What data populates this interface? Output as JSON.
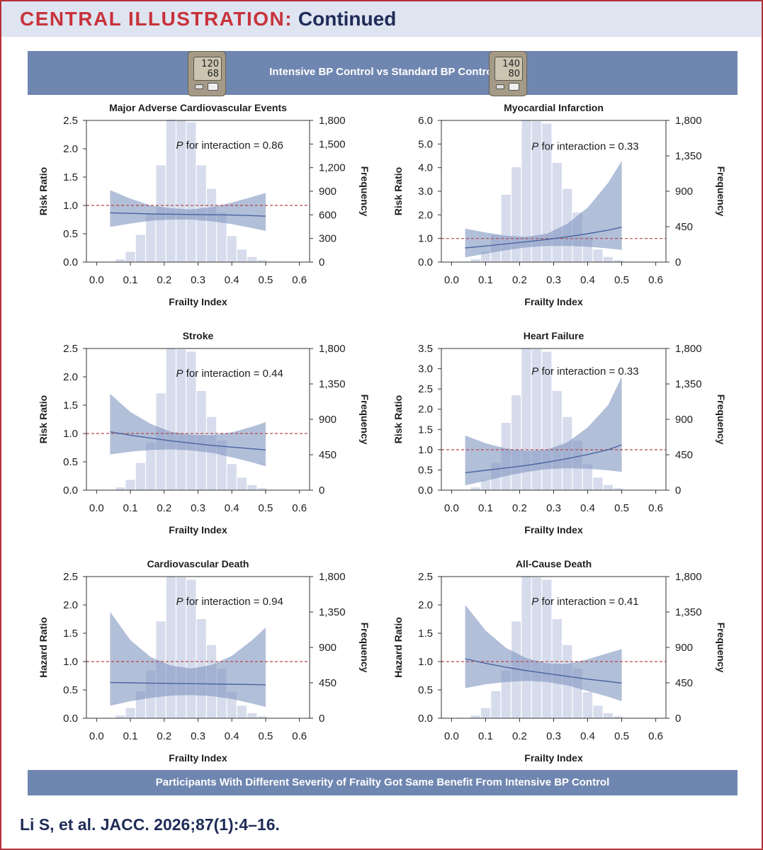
{
  "header": {
    "title_part1": "CENTRAL ILLUSTRATION:",
    "title_part2": "Continued"
  },
  "top_banner": {
    "label": "Intensive BP Control vs Standard BP Control",
    "monitor_left": {
      "systolic": "120",
      "diastolic": "68"
    },
    "monitor_right": {
      "systolic": "140",
      "diastolic": "80"
    }
  },
  "bottom_banner": "Participants With Different Severity of Frailty Got Same Benefit From Intensive BP Control",
  "citation": "Li S, et al. JACC. 2026;87(1):4–16.",
  "colors": {
    "accent": "#c8323a",
    "banner": "#6f86b0",
    "band": "#7f95c0",
    "line": "#4a64a0",
    "histogram": "#d6dcec",
    "reference": "#b5464a"
  },
  "chart_data": [
    {
      "type": "line",
      "title": "Major Adverse Cardiovascular Events",
      "xlabel": "Frailty Index",
      "ylabel": "Risk Ratio",
      "y2label": "Frequency",
      "xlim": [
        -0.03,
        0.63
      ],
      "ylim": [
        0,
        2.5
      ],
      "y2lim": [
        0,
        1800
      ],
      "xticks": [
        "0.0",
        "0.1",
        "0.2",
        "0.3",
        "0.4",
        "0.5",
        "0.6"
      ],
      "xtick_values": [
        0,
        0.1,
        0.2,
        0.3,
        0.4,
        0.5,
        0.6
      ],
      "yticks": [
        "0.0",
        "0.5",
        "1.0",
        "1.5",
        "2.0",
        "2.5"
      ],
      "ytick_values": [
        0,
        0.5,
        1,
        1.5,
        2,
        2.5
      ],
      "y2ticks": [
        "0",
        "300",
        "600",
        "900",
        "1,200",
        "1,500",
        "1,800"
      ],
      "y2tick_values": [
        0,
        300,
        600,
        900,
        1200,
        1500,
        1800
      ],
      "annotation_prefix": "P",
      "annotation": " for interaction = 0.86",
      "annotation_pos": [
        0.235,
        2.0
      ],
      "reference_line": 1.0,
      "histogram": {
        "bins": [
          0.025,
          0.055,
          0.085,
          0.115,
          0.145,
          0.175,
          0.205,
          0.235,
          0.265,
          0.295,
          0.325,
          0.355,
          0.385,
          0.415,
          0.445,
          0.475,
          0.505
        ],
        "counts": [
          5,
          35,
          130,
          345,
          605,
          1230,
          1810,
          1805,
          1775,
          1230,
          930,
          630,
          330,
          160,
          65,
          25
        ]
      },
      "fit": {
        "x": [
          0.04,
          0.1,
          0.16,
          0.22,
          0.28,
          0.34,
          0.4,
          0.46,
          0.5
        ],
        "y": [
          0.87,
          0.86,
          0.85,
          0.845,
          0.84,
          0.835,
          0.83,
          0.82,
          0.81
        ],
        "lower": [
          0.62,
          0.68,
          0.73,
          0.75,
          0.75,
          0.72,
          0.67,
          0.6,
          0.55
        ],
        "upper": [
          1.27,
          1.12,
          1.0,
          0.95,
          0.93,
          0.97,
          1.05,
          1.15,
          1.22
        ]
      }
    },
    {
      "type": "line",
      "title": "Myocardial Infarction",
      "xlabel": "Frailty Index",
      "ylabel": "Risk Ratio",
      "y2label": "Frequency",
      "xlim": [
        -0.03,
        0.63
      ],
      "ylim": [
        0,
        6.0
      ],
      "y2lim": [
        0,
        1800
      ],
      "xticks": [
        "0.0",
        "0.1",
        "0.2",
        "0.3",
        "0.4",
        "0.5",
        "0.6"
      ],
      "xtick_values": [
        0,
        0.1,
        0.2,
        0.3,
        0.4,
        0.5,
        0.6
      ],
      "yticks": [
        "0.0",
        "1.0",
        "2.0",
        "3.0",
        "4.0",
        "5.0",
        "6.0"
      ],
      "ytick_values": [
        0,
        1,
        2,
        3,
        4,
        5,
        6
      ],
      "y2ticks": [
        "0",
        "450",
        "900",
        "1,350",
        "1,800"
      ],
      "y2tick_values": [
        0,
        450,
        900,
        1350,
        1800
      ],
      "annotation_prefix": "P",
      "annotation": " for interaction = 0.33",
      "annotation_pos": [
        0.235,
        4.75
      ],
      "reference_line": 1.0,
      "histogram": {
        "bins": [
          0.025,
          0.055,
          0.085,
          0.115,
          0.145,
          0.175,
          0.205,
          0.235,
          0.265,
          0.295,
          0.325,
          0.355,
          0.385,
          0.415,
          0.445,
          0.475,
          0.505
        ],
        "counts": [
          5,
          35,
          130,
          345,
          855,
          1205,
          1800,
          1790,
          1760,
          1260,
          930,
          630,
          330,
          160,
          65,
          25
        ]
      },
      "fit": {
        "x": [
          0.04,
          0.1,
          0.16,
          0.22,
          0.28,
          0.34,
          0.4,
          0.46,
          0.5
        ],
        "y": [
          0.6,
          0.68,
          0.77,
          0.86,
          0.96,
          1.07,
          1.2,
          1.35,
          1.48
        ],
        "lower": [
          0.2,
          0.35,
          0.5,
          0.62,
          0.68,
          0.68,
          0.65,
          0.58,
          0.52
        ],
        "upper": [
          1.42,
          1.25,
          1.12,
          1.07,
          1.2,
          1.62,
          2.3,
          3.35,
          4.28
        ]
      }
    },
    {
      "type": "line",
      "title": "Stroke",
      "xlabel": "Frailty Index",
      "ylabel": "Risk Ratio",
      "y2label": "Frequency",
      "xlim": [
        -0.03,
        0.63
      ],
      "ylim": [
        0,
        2.5
      ],
      "y2lim": [
        0,
        1800
      ],
      "xticks": [
        "0.0",
        "0.1",
        "0.2",
        "0.3",
        "0.4",
        "0.5",
        "0.6"
      ],
      "xtick_values": [
        0,
        0.1,
        0.2,
        0.3,
        0.4,
        0.5,
        0.6
      ],
      "yticks": [
        "0.0",
        "0.5",
        "1.0",
        "1.5",
        "2.0",
        "2.5"
      ],
      "ytick_values": [
        0,
        0.5,
        1,
        1.5,
        2,
        2.5
      ],
      "y2ticks": [
        "0",
        "450",
        "900",
        "1,350",
        "1,800"
      ],
      "y2tick_values": [
        0,
        450,
        900,
        1350,
        1800
      ],
      "annotation_prefix": "P",
      "annotation": " for interaction = 0.44",
      "annotation_pos": [
        0.235,
        2.0
      ],
      "reference_line": 1.0,
      "histogram": {
        "bins": [
          0.025,
          0.055,
          0.085,
          0.115,
          0.145,
          0.175,
          0.205,
          0.235,
          0.265,
          0.295,
          0.325,
          0.355,
          0.385,
          0.415,
          0.445,
          0.475,
          0.505
        ],
        "counts": [
          5,
          35,
          130,
          345,
          605,
          1230,
          1800,
          1790,
          1760,
          1260,
          930,
          630,
          330,
          160,
          65,
          25
        ]
      },
      "fit": {
        "x": [
          0.04,
          0.1,
          0.16,
          0.22,
          0.28,
          0.34,
          0.4,
          0.46,
          0.5
        ],
        "y": [
          1.03,
          0.97,
          0.92,
          0.87,
          0.83,
          0.79,
          0.76,
          0.73,
          0.71
        ],
        "lower": [
          0.63,
          0.68,
          0.71,
          0.72,
          0.7,
          0.66,
          0.58,
          0.49,
          0.42
        ],
        "upper": [
          1.7,
          1.38,
          1.17,
          1.03,
          0.98,
          0.97,
          1.02,
          1.12,
          1.2
        ]
      }
    },
    {
      "type": "line",
      "title": "Heart Failure",
      "xlabel": "Frailty Index",
      "ylabel": "Risk Ratio",
      "y2label": "Frequency",
      "xlim": [
        -0.03,
        0.63
      ],
      "ylim": [
        0,
        3.5
      ],
      "y2lim": [
        0,
        1800
      ],
      "xticks": [
        "0.0",
        "0.1",
        "0.2",
        "0.3",
        "0.4",
        "0.5",
        "0.6"
      ],
      "xtick_values": [
        0,
        0.1,
        0.2,
        0.3,
        0.4,
        0.5,
        0.6
      ],
      "yticks": [
        "0.0",
        "0.5",
        "1.0",
        "1.5",
        "2.0",
        "2.5",
        "3.0",
        "3.5"
      ],
      "ytick_values": [
        0,
        0.5,
        1,
        1.5,
        2,
        2.5,
        3,
        3.5
      ],
      "y2ticks": [
        "0",
        "450",
        "900",
        "1,350",
        "1,800"
      ],
      "y2tick_values": [
        0,
        450,
        900,
        1350,
        1800
      ],
      "annotation_prefix": "P",
      "annotation": " for interaction = 0.33",
      "annotation_pos": [
        0.235,
        2.85
      ],
      "reference_line": 1.0,
      "histogram": {
        "bins": [
          0.025,
          0.055,
          0.085,
          0.115,
          0.145,
          0.175,
          0.205,
          0.235,
          0.265,
          0.295,
          0.325,
          0.355,
          0.385,
          0.415,
          0.445,
          0.475,
          0.505
        ],
        "counts": [
          5,
          35,
          130,
          345,
          855,
          1205,
          1800,
          1790,
          1760,
          1260,
          930,
          630,
          330,
          160,
          65,
          25
        ]
      },
      "fit": {
        "x": [
          0.04,
          0.1,
          0.16,
          0.22,
          0.28,
          0.34,
          0.4,
          0.46,
          0.5
        ],
        "y": [
          0.43,
          0.49,
          0.55,
          0.61,
          0.69,
          0.78,
          0.88,
          1.0,
          1.12
        ],
        "lower": [
          0.12,
          0.23,
          0.35,
          0.45,
          0.52,
          0.54,
          0.53,
          0.49,
          0.45
        ],
        "upper": [
          1.35,
          1.16,
          1.03,
          0.97,
          1.0,
          1.18,
          1.55,
          2.1,
          2.8
        ]
      }
    },
    {
      "type": "line",
      "title": "Cardiovascular Death",
      "xlabel": "Frailty Index",
      "ylabel": "Hazard Ratio",
      "y2label": "Frequency",
      "xlim": [
        -0.03,
        0.63
      ],
      "ylim": [
        0,
        2.5
      ],
      "y2lim": [
        0,
        1800
      ],
      "xticks": [
        "0.0",
        "0.1",
        "0.2",
        "0.3",
        "0.4",
        "0.5",
        "0.6"
      ],
      "xtick_values": [
        0,
        0.1,
        0.2,
        0.3,
        0.4,
        0.5,
        0.6
      ],
      "yticks": [
        "0.0",
        "0.5",
        "1.0",
        "1.5",
        "2.0",
        "2.5"
      ],
      "ytick_values": [
        0,
        0.5,
        1,
        1.5,
        2,
        2.5
      ],
      "y2ticks": [
        "0",
        "450",
        "900",
        "1,350",
        "1,800"
      ],
      "y2tick_values": [
        0,
        450,
        900,
        1350,
        1800
      ],
      "annotation_prefix": "P",
      "annotation": " for interaction = 0.94",
      "annotation_pos": [
        0.235,
        2.0
      ],
      "reference_line": 1.0,
      "histogram": {
        "bins": [
          0.025,
          0.055,
          0.085,
          0.115,
          0.145,
          0.175,
          0.205,
          0.235,
          0.265,
          0.295,
          0.325,
          0.355,
          0.385,
          0.415,
          0.445,
          0.475,
          0.505
        ],
        "counts": [
          5,
          35,
          130,
          345,
          605,
          1230,
          1800,
          1790,
          1760,
          1260,
          930,
          630,
          330,
          160,
          65,
          25
        ]
      },
      "fit": {
        "x": [
          0.04,
          0.1,
          0.16,
          0.22,
          0.28,
          0.34,
          0.4,
          0.46,
          0.5
        ],
        "y": [
          0.63,
          0.625,
          0.62,
          0.615,
          0.61,
          0.605,
          0.6,
          0.595,
          0.59
        ],
        "lower": [
          0.22,
          0.3,
          0.36,
          0.4,
          0.41,
          0.39,
          0.34,
          0.26,
          0.2
        ],
        "upper": [
          1.88,
          1.38,
          1.08,
          0.93,
          0.88,
          0.94,
          1.1,
          1.38,
          1.6
        ]
      }
    },
    {
      "type": "line",
      "title": "All-Cause Death",
      "xlabel": "Frailty Index",
      "ylabel": "Hazard Ratio",
      "y2label": "Frequency",
      "xlim": [
        -0.03,
        0.63
      ],
      "ylim": [
        0,
        2.5
      ],
      "y2lim": [
        0,
        1800
      ],
      "xticks": [
        "0.0",
        "0.1",
        "0.2",
        "0.3",
        "0.4",
        "0.5",
        "0.6"
      ],
      "xtick_values": [
        0,
        0.1,
        0.2,
        0.3,
        0.4,
        0.5,
        0.6
      ],
      "yticks": [
        "0.0",
        "0.5",
        "1.0",
        "1.5",
        "2.0",
        "2.5"
      ],
      "ytick_values": [
        0,
        0.5,
        1,
        1.5,
        2,
        2.5
      ],
      "y2ticks": [
        "0",
        "450",
        "900",
        "1,350",
        "1,800"
      ],
      "y2tick_values": [
        0,
        450,
        900,
        1350,
        1800
      ],
      "annotation_prefix": "P",
      "annotation": " for interaction = 0.41",
      "annotation_pos": [
        0.235,
        2.0
      ],
      "reference_line": 1.0,
      "histogram": {
        "bins": [
          0.025,
          0.055,
          0.085,
          0.115,
          0.145,
          0.175,
          0.205,
          0.235,
          0.265,
          0.295,
          0.325,
          0.355,
          0.385,
          0.415,
          0.445,
          0.475,
          0.505
        ],
        "counts": [
          5,
          35,
          130,
          345,
          605,
          1230,
          1800,
          1790,
          1760,
          1260,
          930,
          630,
          330,
          160,
          65,
          25
        ]
      },
      "fit": {
        "x": [
          0.04,
          0.1,
          0.16,
          0.22,
          0.28,
          0.34,
          0.4,
          0.46,
          0.5
        ],
        "y": [
          1.05,
          0.97,
          0.9,
          0.84,
          0.79,
          0.74,
          0.69,
          0.65,
          0.62
        ],
        "lower": [
          0.53,
          0.6,
          0.64,
          0.66,
          0.64,
          0.58,
          0.48,
          0.38,
          0.3
        ],
        "upper": [
          2.0,
          1.55,
          1.24,
          1.06,
          0.97,
          0.96,
          1.04,
          1.15,
          1.22
        ]
      }
    }
  ]
}
